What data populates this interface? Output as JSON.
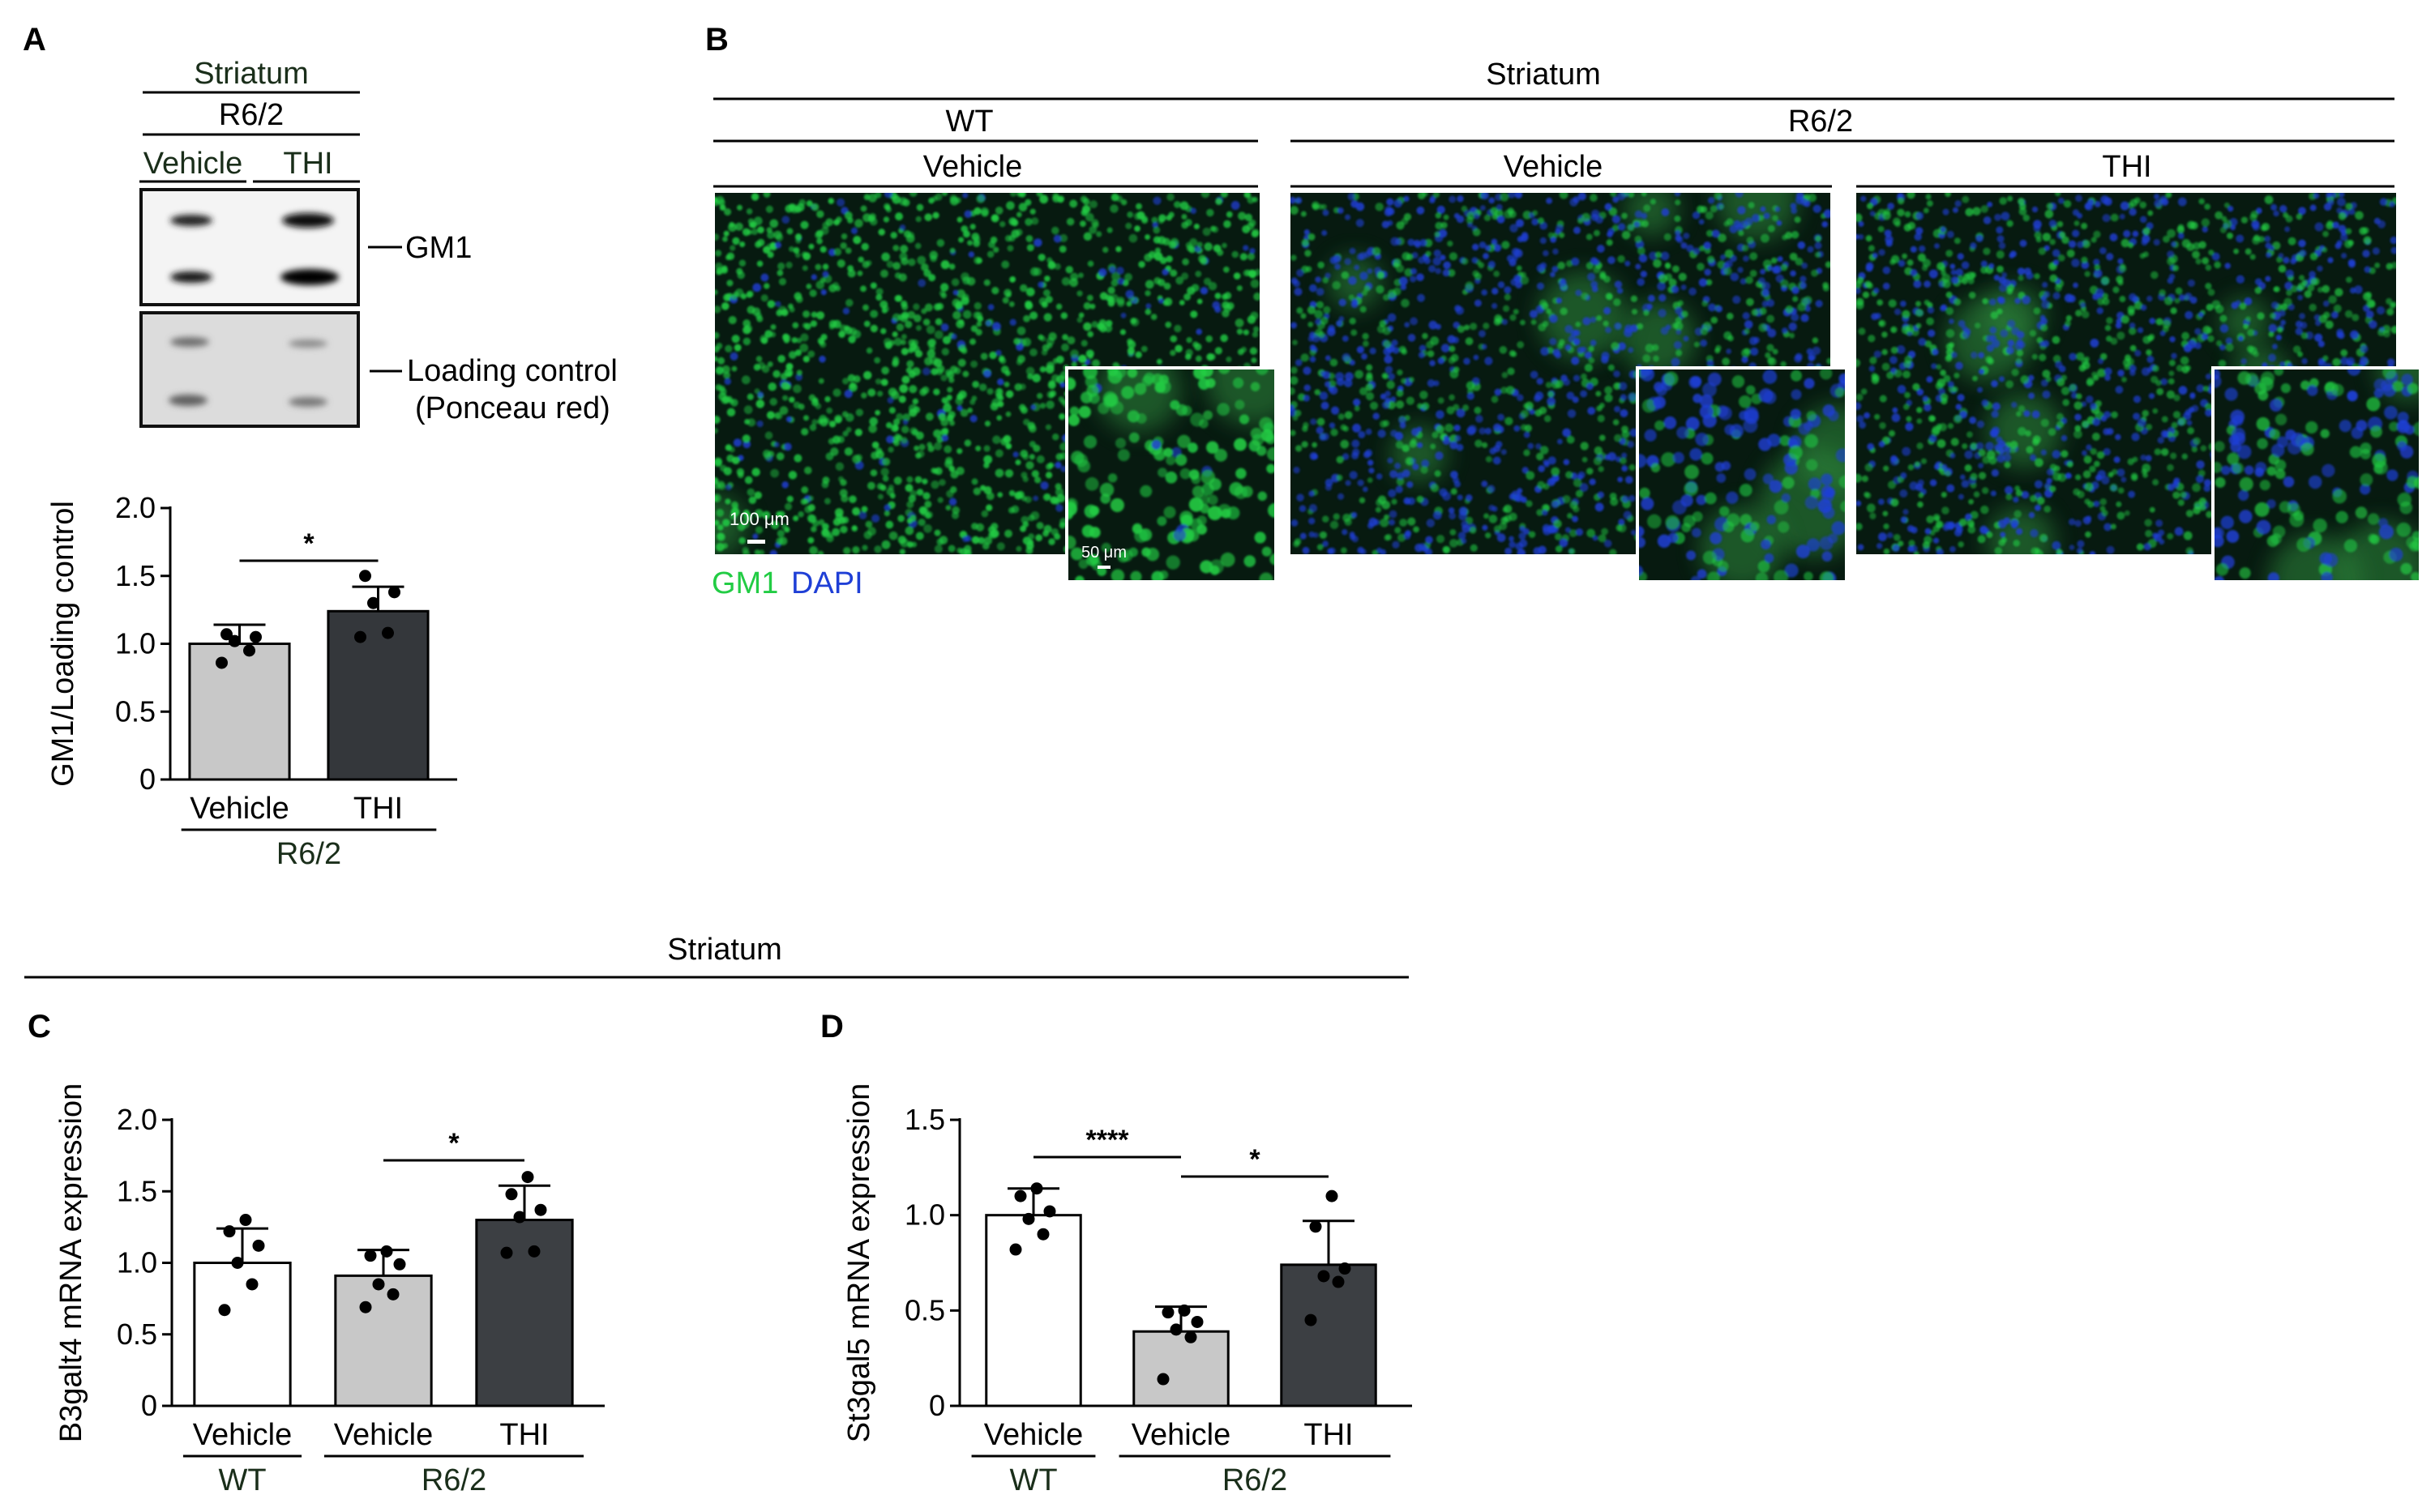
{
  "panels": {
    "A": {
      "letter": "A",
      "region": "Striatum",
      "group": "R6/2",
      "lanes": [
        "Vehicle",
        "THI"
      ],
      "band_labels": {
        "gm1": "GM1",
        "loading_line1": "Loading control",
        "loading_line2": "(Ponceau red)"
      }
    },
    "B": {
      "letter": "B",
      "region": "Striatum",
      "group_wt": "WT",
      "group_r62": "R6/2",
      "cond_wt": "Vehicle",
      "cond_r62_vehicle": "Vehicle",
      "cond_r62_thi": "THI",
      "legend_gm1": "GM1",
      "legend_dapi": "DAPI",
      "scale_main": "100 μm",
      "scale_inset": "50 μm",
      "colors": {
        "gm1": "#22cc44",
        "dapi": "#1f3fd6",
        "tissue": "#071a10"
      }
    },
    "C": {
      "letter": "C"
    },
    "D": {
      "letter": "D"
    },
    "CD": {
      "region": "Striatum"
    }
  },
  "chart_data": [
    {
      "panel": "A",
      "type": "bar",
      "categories": [
        "Vehicle",
        "THI"
      ],
      "group_label": "R6/2",
      "values": [
        1.0,
        1.24
      ],
      "errors": [
        0.14,
        0.18
      ],
      "points": [
        [
          0.86,
          0.95,
          1.02,
          1.05,
          1.07
        ],
        [
          1.05,
          1.08,
          1.3,
          1.38,
          1.5
        ]
      ],
      "bar_colors": [
        "#c8c8c8",
        "#34373b"
      ],
      "ylabel": "GM1/Loading control",
      "ylim": [
        0,
        2.0
      ],
      "yticks": [
        "0",
        "0.5",
        "1.0",
        "1.5",
        "2.0"
      ],
      "significance": [
        {
          "from": 0,
          "to": 1,
          "label": "*"
        }
      ]
    },
    {
      "panel": "C",
      "type": "bar",
      "categories": [
        "Vehicle",
        "Vehicle",
        "THI"
      ],
      "groups": [
        {
          "label": "WT",
          "from": 0,
          "to": 0
        },
        {
          "label": "R6/2",
          "from": 1,
          "to": 2
        }
      ],
      "values": [
        1.0,
        0.91,
        1.3
      ],
      "errors": [
        0.24,
        0.18,
        0.24
      ],
      "points": [
        [
          0.67,
          0.85,
          1.0,
          1.12,
          1.22,
          1.3
        ],
        [
          0.69,
          0.78,
          0.85,
          0.99,
          1.05,
          1.08
        ],
        [
          1.07,
          1.08,
          1.32,
          1.37,
          1.48,
          1.6
        ]
      ],
      "bar_colors": [
        "#ffffff",
        "#c8c8c8",
        "#3c3f43"
      ],
      "ylabel": "B3galt4 mRNA expression",
      "ylim": [
        0,
        2.0
      ],
      "yticks": [
        "0",
        "0.5",
        "1.0",
        "1.5",
        "2.0"
      ],
      "significance": [
        {
          "from": 1,
          "to": 2,
          "label": "*"
        }
      ]
    },
    {
      "panel": "D",
      "type": "bar",
      "categories": [
        "Vehicle",
        "Vehicle",
        "THI"
      ],
      "groups": [
        {
          "label": "WT",
          "from": 0,
          "to": 0
        },
        {
          "label": "R6/2",
          "from": 1,
          "to": 2
        }
      ],
      "values": [
        1.0,
        0.39,
        0.74
      ],
      "errors": [
        0.14,
        0.13,
        0.23
      ],
      "points": [
        [
          0.82,
          0.9,
          0.98,
          1.02,
          1.1,
          1.14
        ],
        [
          0.14,
          0.36,
          0.4,
          0.44,
          0.49,
          0.5
        ],
        [
          0.45,
          0.65,
          0.68,
          0.72,
          0.94,
          1.1
        ]
      ],
      "bar_colors": [
        "#ffffff",
        "#c8c8c8",
        "#3c3f43"
      ],
      "ylabel": "St3gal5 mRNA expression",
      "ylim": [
        0,
        1.5
      ],
      "yticks": [
        "0",
        "0.5",
        "1.0",
        "1.5"
      ],
      "significance": [
        {
          "from": 0,
          "to": 1,
          "label": "****"
        },
        {
          "from": 1,
          "to": 2,
          "label": "*"
        }
      ]
    }
  ]
}
